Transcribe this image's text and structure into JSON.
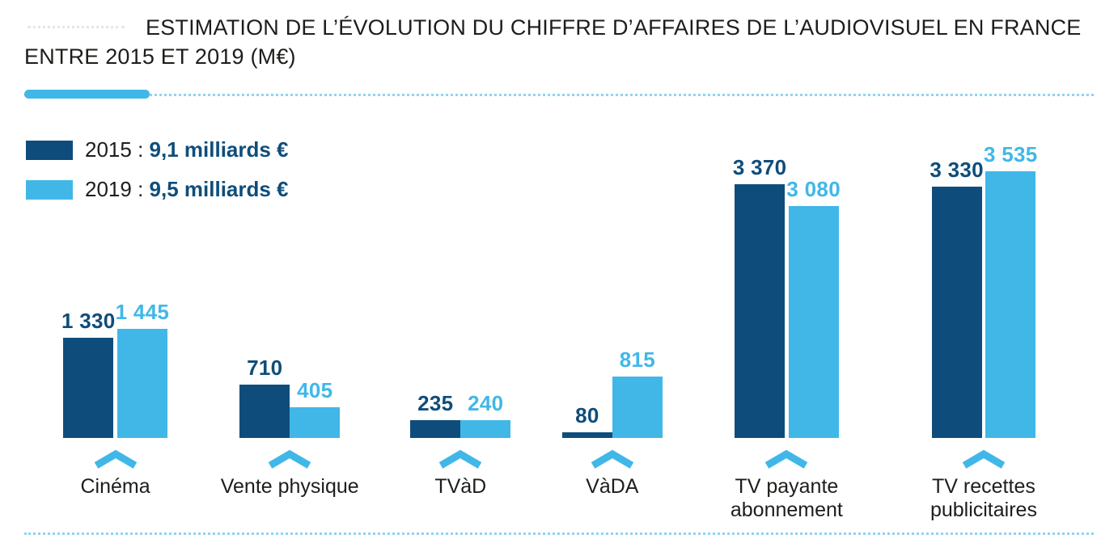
{
  "page": {
    "title": "ESTIMATION DE L’ÉVOLUTION DU CHIFFRE D’AFFAIRES DE L’AUDIOVISUEL EN FRANCE ENTRE 2015 ET 2019 (M€)"
  },
  "colors": {
    "series_2015": "#0e4d7b",
    "series_2019": "#41b7e8",
    "accent": "#41b7e8",
    "dotted_line": "#8ed4f1",
    "title_text": "#1d1d1b"
  },
  "legend": {
    "items": [
      {
        "year_label": "2015 :",
        "value_label": "9,1 milliards €",
        "color": "#0e4d7b"
      },
      {
        "year_label": "2019 :",
        "value_label": "9,5 milliards €",
        "color": "#41b7e8"
      }
    ]
  },
  "chart_data": {
    "type": "bar",
    "title": "Estimation de l’évolution du chiffre d’affaires de l’audiovisuel en France entre 2015 et 2019 (M€)",
    "unit": "M€",
    "categories": [
      "Cinéma",
      "Vente physique",
      "TVàD",
      "VàDA",
      "TV payante abonnement",
      "TV recettes publicitaires"
    ],
    "series": [
      {
        "name": "2015",
        "color": "#0e4d7b",
        "values": [
          1330,
          710,
          235,
          80,
          3370,
          3330
        ],
        "labels": [
          "1 330",
          "710",
          "235",
          "80",
          "3 370",
          "3 330"
        ],
        "total_label": "9,1 milliards €"
      },
      {
        "name": "2019",
        "color": "#41b7e8",
        "values": [
          1445,
          405,
          240,
          815,
          3080,
          3535
        ],
        "labels": [
          "1 445",
          "405",
          "240",
          "815",
          "3 080",
          "3 535"
        ],
        "total_label": "9,5 milliards €"
      }
    ],
    "xlabel": "",
    "ylabel": "",
    "ylim": [
      0,
      3700
    ],
    "grid": false,
    "legend_position": "top-left"
  }
}
